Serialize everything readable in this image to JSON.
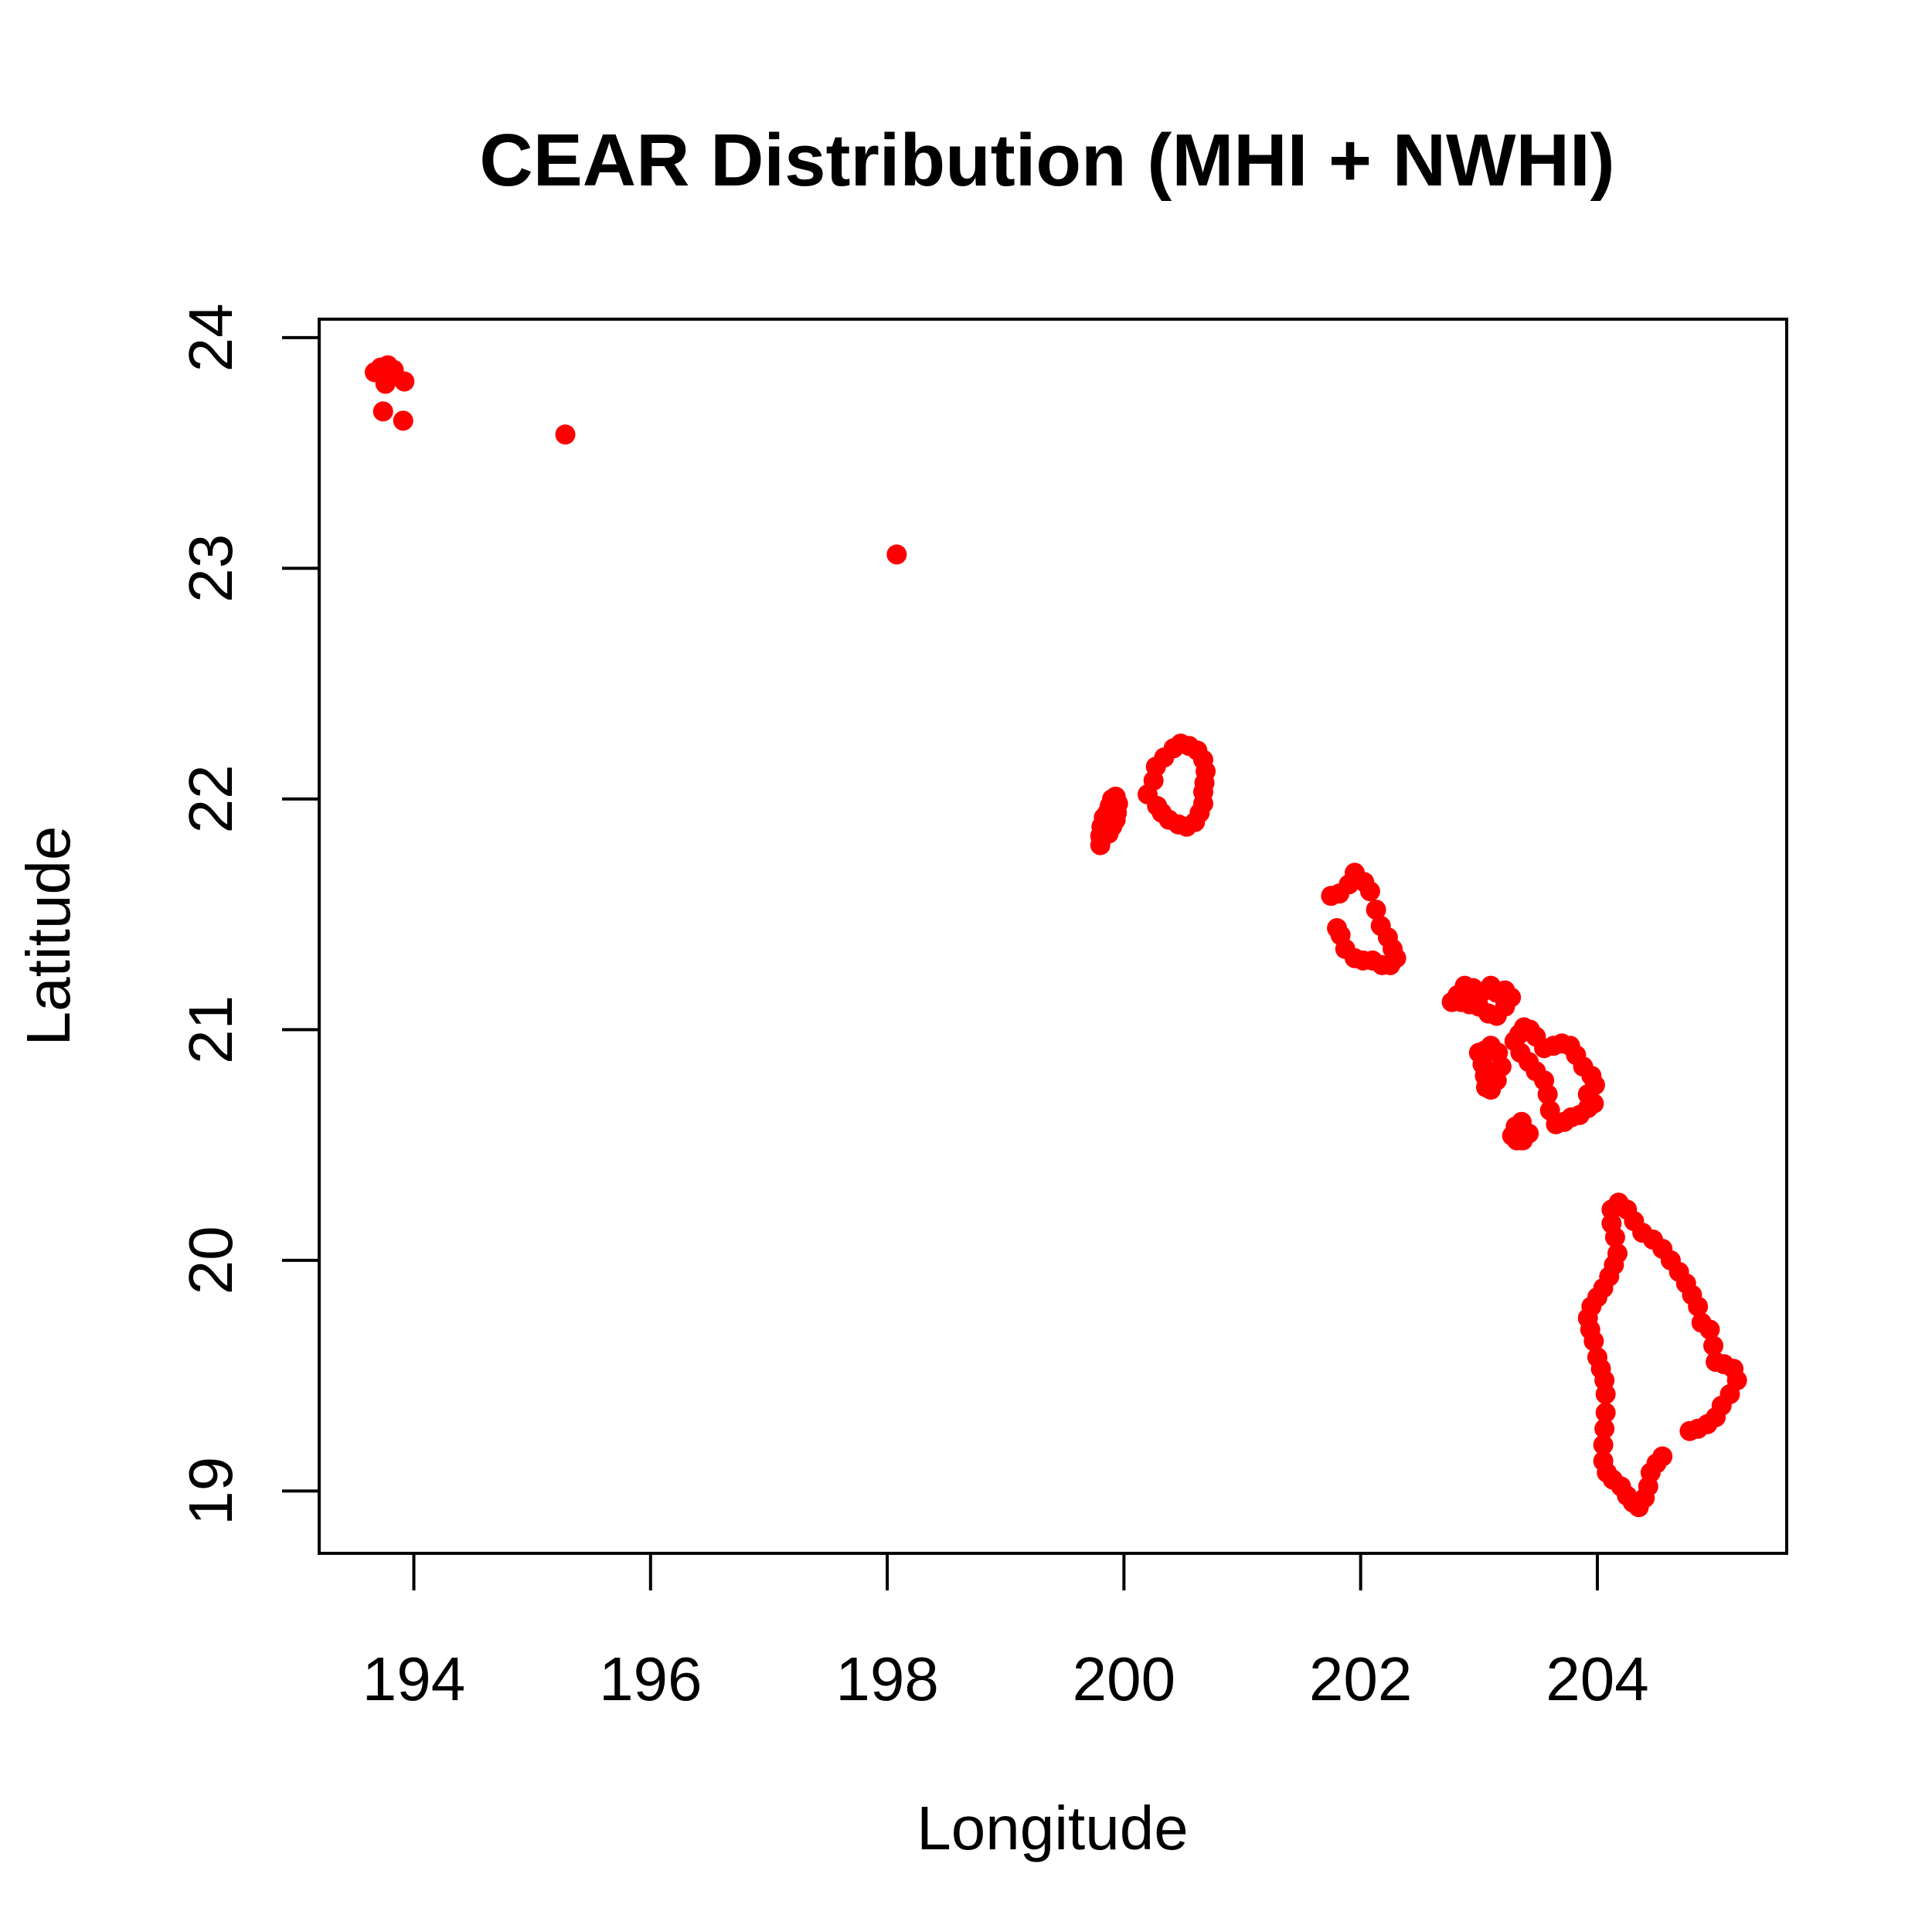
{
  "chart_data": {
    "type": "scatter",
    "title": "CEAR Distribution (MHI + NWHI)",
    "xlabel": "Longitude",
    "ylabel": "Latitude",
    "xlim": [
      193.2,
      205.6
    ],
    "ylim": [
      18.73,
      24.08
    ],
    "x_ticks": [
      "194",
      "196",
      "198",
      "200",
      "202",
      "204"
    ],
    "y_ticks": [
      "19",
      "20",
      "21",
      "22",
      "23",
      "24"
    ],
    "x_tick_values": [
      194,
      196,
      198,
      200,
      202,
      204
    ],
    "y_tick_values": [
      19,
      20,
      21,
      22,
      23,
      24
    ],
    "point_color": "#ff0000",
    "grid": false,
    "legend": "none",
    "points": [
      [
        193.67,
        23.85
      ],
      [
        193.72,
        23.87
      ],
      [
        193.78,
        23.88
      ],
      [
        193.83,
        23.86
      ],
      [
        193.76,
        23.8
      ],
      [
        193.92,
        23.81
      ],
      [
        193.74,
        23.68
      ],
      [
        193.91,
        23.64
      ],
      [
        195.28,
        23.58
      ],
      [
        198.08,
        23.06
      ],
      [
        199.8,
        21.8
      ],
      [
        199.8,
        21.84
      ],
      [
        199.81,
        21.88
      ],
      [
        199.83,
        21.92
      ],
      [
        199.86,
        21.94
      ],
      [
        199.88,
        21.97
      ],
      [
        199.9,
        22.0
      ],
      [
        199.93,
        22.01
      ],
      [
        199.95,
        21.98
      ],
      [
        199.94,
        21.94
      ],
      [
        199.93,
        21.91
      ],
      [
        199.9,
        21.88
      ],
      [
        199.87,
        21.85
      ],
      [
        200.2,
        22.02
      ],
      [
        200.25,
        22.08
      ],
      [
        200.27,
        22.14
      ],
      [
        200.34,
        22.18
      ],
      [
        200.42,
        22.22
      ],
      [
        200.48,
        22.24
      ],
      [
        200.55,
        22.23
      ],
      [
        200.62,
        22.21
      ],
      [
        200.67,
        22.17
      ],
      [
        200.69,
        22.12
      ],
      [
        200.68,
        22.07
      ],
      [
        200.67,
        22.03
      ],
      [
        200.67,
        21.98
      ],
      [
        200.64,
        21.94
      ],
      [
        200.6,
        21.9
      ],
      [
        200.53,
        21.88
      ],
      [
        200.46,
        21.89
      ],
      [
        200.38,
        21.91
      ],
      [
        200.32,
        21.94
      ],
      [
        200.28,
        21.97
      ],
      [
        201.75,
        21.58
      ],
      [
        201.82,
        21.59
      ],
      [
        201.9,
        21.63
      ],
      [
        201.95,
        21.68
      ],
      [
        202.03,
        21.64
      ],
      [
        202.08,
        21.6
      ],
      [
        202.13,
        21.52
      ],
      [
        202.17,
        21.45
      ],
      [
        202.23,
        21.4
      ],
      [
        202.27,
        21.35
      ],
      [
        202.3,
        21.31
      ],
      [
        202.25,
        21.28
      ],
      [
        202.18,
        21.28
      ],
      [
        202.1,
        21.3
      ],
      [
        202.02,
        21.3
      ],
      [
        201.95,
        21.31
      ],
      [
        201.87,
        21.35
      ],
      [
        201.83,
        21.41
      ],
      [
        201.8,
        21.44
      ],
      [
        202.77,
        21.12
      ],
      [
        202.82,
        21.15
      ],
      [
        202.88,
        21.19
      ],
      [
        202.95,
        21.18
      ],
      [
        203.02,
        21.16
      ],
      [
        203.1,
        21.19
      ],
      [
        203.15,
        21.16
      ],
      [
        203.22,
        21.17
      ],
      [
        203.27,
        21.14
      ],
      [
        203.22,
        21.1
      ],
      [
        203.15,
        21.06
      ],
      [
        203.08,
        21.07
      ],
      [
        203.0,
        21.1
      ],
      [
        202.92,
        21.11
      ],
      [
        202.85,
        21.12
      ],
      [
        203.0,
        20.9
      ],
      [
        203.03,
        20.85
      ],
      [
        203.05,
        20.8
      ],
      [
        203.06,
        20.75
      ],
      [
        203.1,
        20.74
      ],
      [
        203.15,
        20.78
      ],
      [
        203.19,
        20.84
      ],
      [
        203.16,
        20.9
      ],
      [
        203.1,
        20.93
      ],
      [
        203.05,
        20.91
      ],
      [
        203.28,
        20.54
      ],
      [
        203.32,
        20.52
      ],
      [
        203.37,
        20.52
      ],
      [
        203.42,
        20.55
      ],
      [
        203.36,
        20.6
      ],
      [
        203.31,
        20.58
      ],
      [
        203.35,
        20.9
      ],
      [
        203.42,
        20.86
      ],
      [
        203.48,
        20.82
      ],
      [
        203.55,
        20.78
      ],
      [
        203.58,
        20.72
      ],
      [
        203.6,
        20.65
      ],
      [
        203.65,
        20.59
      ],
      [
        203.72,
        20.6
      ],
      [
        203.78,
        20.62
      ],
      [
        203.85,
        20.63
      ],
      [
        203.92,
        20.66
      ],
      [
        203.97,
        20.68
      ],
      [
        203.92,
        20.72
      ],
      [
        203.98,
        20.76
      ],
      [
        203.95,
        20.8
      ],
      [
        203.88,
        20.84
      ],
      [
        203.82,
        20.89
      ],
      [
        203.77,
        20.93
      ],
      [
        203.7,
        20.94
      ],
      [
        203.63,
        20.93
      ],
      [
        203.55,
        20.92
      ],
      [
        203.48,
        20.97
      ],
      [
        203.43,
        21.0
      ],
      [
        203.38,
        21.01
      ],
      [
        203.34,
        20.98
      ],
      [
        203.3,
        20.95
      ],
      [
        204.18,
        20.25
      ],
      [
        204.25,
        20.22
      ],
      [
        204.31,
        20.17
      ],
      [
        204.38,
        20.12
      ],
      [
        204.47,
        20.09
      ],
      [
        204.55,
        20.05
      ],
      [
        204.62,
        20.0
      ],
      [
        204.69,
        19.95
      ],
      [
        204.75,
        19.9
      ],
      [
        204.8,
        19.85
      ],
      [
        204.85,
        19.8
      ],
      [
        204.88,
        19.73
      ],
      [
        204.95,
        19.7
      ],
      [
        204.98,
        19.63
      ],
      [
        205.0,
        19.56
      ],
      [
        205.07,
        19.55
      ],
      [
        205.15,
        19.53
      ],
      [
        205.18,
        19.48
      ],
      [
        205.12,
        19.42
      ],
      [
        205.05,
        19.37
      ],
      [
        205.0,
        19.32
      ],
      [
        204.93,
        19.29
      ],
      [
        204.85,
        19.27
      ],
      [
        204.78,
        19.26
      ],
      [
        204.55,
        19.15
      ],
      [
        204.5,
        19.12
      ],
      [
        204.45,
        19.08
      ],
      [
        204.43,
        19.02
      ],
      [
        204.4,
        18.97
      ],
      [
        204.35,
        18.93
      ],
      [
        204.3,
        18.95
      ],
      [
        204.25,
        18.98
      ],
      [
        204.2,
        19.02
      ],
      [
        204.13,
        19.05
      ],
      [
        204.08,
        19.08
      ],
      [
        204.05,
        19.13
      ],
      [
        204.05,
        19.2
      ],
      [
        204.06,
        19.27
      ],
      [
        204.07,
        19.34
      ],
      [
        204.07,
        19.42
      ],
      [
        204.06,
        19.48
      ],
      [
        204.03,
        19.53
      ],
      [
        204.0,
        19.58
      ],
      [
        203.97,
        19.65
      ],
      [
        203.94,
        19.7
      ],
      [
        203.92,
        19.75
      ],
      [
        203.95,
        19.8
      ],
      [
        204.0,
        19.84
      ],
      [
        204.05,
        19.88
      ],
      [
        204.1,
        19.93
      ],
      [
        204.14,
        19.98
      ],
      [
        204.17,
        20.03
      ],
      [
        204.15,
        20.1
      ],
      [
        204.12,
        20.16
      ],
      [
        204.12,
        20.22
      ]
    ]
  }
}
